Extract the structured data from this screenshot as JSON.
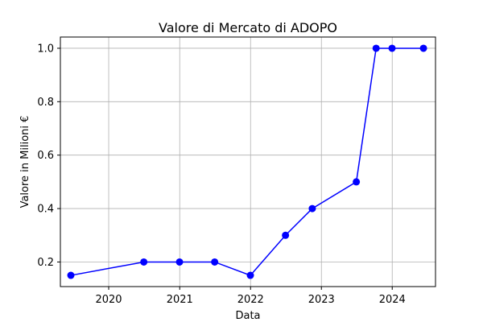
{
  "chart_data": {
    "type": "line",
    "title": "Valore di Mercato di ADOPO",
    "xlabel": "Data",
    "ylabel": "Valore in Milioni €",
    "x_ticks": [
      {
        "date": "2020-01-01",
        "label": "2020"
      },
      {
        "date": "2021-01-01",
        "label": "2021"
      },
      {
        "date": "2022-01-01",
        "label": "2022"
      },
      {
        "date": "2023-01-01",
        "label": "2023"
      },
      {
        "date": "2024-01-01",
        "label": "2024"
      }
    ],
    "y_ticks": [
      {
        "value": 0.2,
        "label": "0.2"
      },
      {
        "value": 0.4,
        "label": "0.4"
      },
      {
        "value": 0.6,
        "label": "0.6"
      },
      {
        "value": 0.8,
        "label": "0.8"
      },
      {
        "value": 1.0,
        "label": "1.0"
      }
    ],
    "xlim": [
      "2019-04-27",
      "2024-08-11"
    ],
    "ylim": [
      0.108,
      1.042
    ],
    "grid": true,
    "series": [
      {
        "color": "#0000ff",
        "marker": "circle",
        "points": [
          {
            "x": "2019-06-20",
            "y": 0.15
          },
          {
            "x": "2020-06-30",
            "y": 0.2
          },
          {
            "x": "2020-12-31",
            "y": 0.2
          },
          {
            "x": "2021-06-30",
            "y": 0.2
          },
          {
            "x": "2021-12-31",
            "y": 0.15
          },
          {
            "x": "2022-06-30",
            "y": 0.3
          },
          {
            "x": "2022-11-15",
            "y": 0.4
          },
          {
            "x": "2023-06-30",
            "y": 0.5
          },
          {
            "x": "2023-10-10",
            "y": 1.0
          },
          {
            "x": "2023-12-31",
            "y": 1.0
          },
          {
            "x": "2024-06-10",
            "y": 1.0
          }
        ]
      }
    ]
  }
}
